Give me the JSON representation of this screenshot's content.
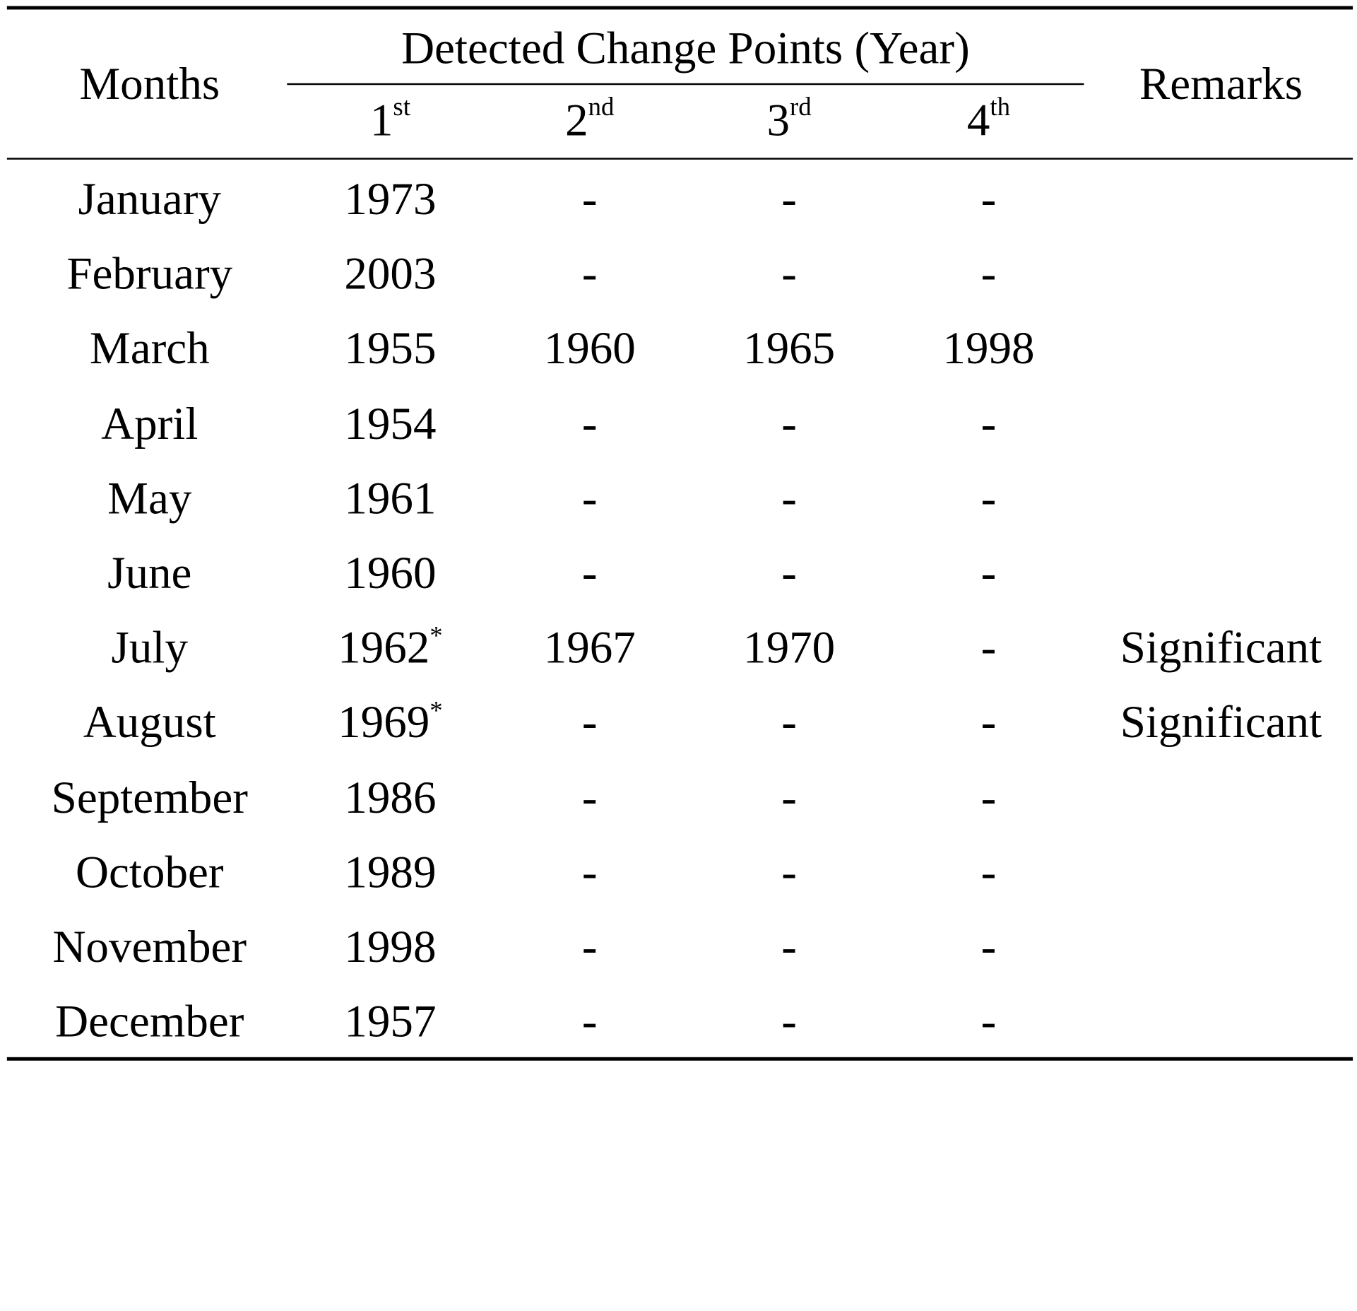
{
  "table": {
    "header": {
      "months": "Months",
      "group": "Detected Change Points (Year)",
      "remarks": "Remarks",
      "sub": [
        {
          "num": "1",
          "suffix": "st"
        },
        {
          "num": "2",
          "suffix": "nd"
        },
        {
          "num": "3",
          "suffix": "rd"
        },
        {
          "num": "4",
          "suffix": "th"
        }
      ]
    },
    "significance_mark": "*",
    "rows": [
      {
        "month": "January",
        "c1": "1973",
        "c1_mark": "",
        "c2": "-",
        "c3": "-",
        "c4": "-",
        "remarks": ""
      },
      {
        "month": "February",
        "c1": "2003",
        "c1_mark": "",
        "c2": "-",
        "c3": "-",
        "c4": "-",
        "remarks": ""
      },
      {
        "month": "March",
        "c1": "1955",
        "c1_mark": "",
        "c2": "1960",
        "c3": "1965",
        "c4": "1998",
        "remarks": ""
      },
      {
        "month": "April",
        "c1": "1954",
        "c1_mark": "",
        "c2": "-",
        "c3": "-",
        "c4": "-",
        "remarks": ""
      },
      {
        "month": "May",
        "c1": "1961",
        "c1_mark": "",
        "c2": "-",
        "c3": "-",
        "c4": "-",
        "remarks": ""
      },
      {
        "month": "June",
        "c1": "1960",
        "c1_mark": "",
        "c2": "-",
        "c3": "-",
        "c4": "-",
        "remarks": ""
      },
      {
        "month": "July",
        "c1": "1962",
        "c1_mark": "*",
        "c2": "1967",
        "c3": "1970",
        "c4": "-",
        "remarks": "Significant"
      },
      {
        "month": "August",
        "c1": "1969",
        "c1_mark": "*",
        "c2": "-",
        "c3": "-",
        "c4": "-",
        "remarks": "Significant"
      },
      {
        "month": "September",
        "c1": "1986",
        "c1_mark": "",
        "c2": "-",
        "c3": "-",
        "c4": "-",
        "remarks": ""
      },
      {
        "month": "October",
        "c1": "1989",
        "c1_mark": "",
        "c2": "-",
        "c3": "-",
        "c4": "-",
        "remarks": ""
      },
      {
        "month": "November",
        "c1": "1998",
        "c1_mark": "",
        "c2": "-",
        "c3": "-",
        "c4": "-",
        "remarks": ""
      },
      {
        "month": "December",
        "c1": "1957",
        "c1_mark": "",
        "c2": "-",
        "c3": "-",
        "c4": "-",
        "remarks": ""
      }
    ]
  }
}
